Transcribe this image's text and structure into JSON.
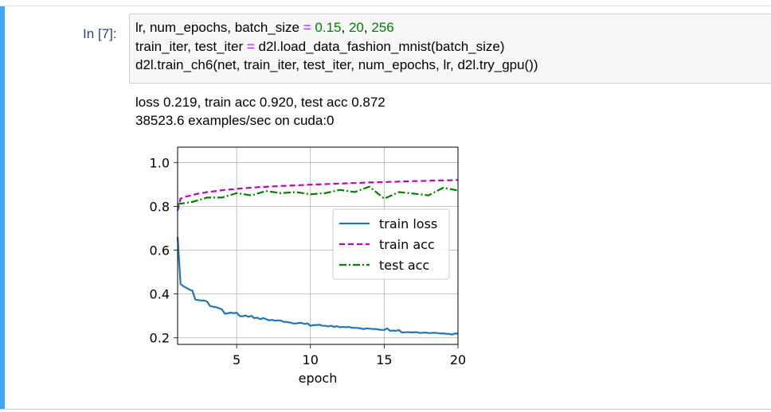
{
  "notebook": {
    "prompt": "In [7]:",
    "code": {
      "line1": {
        "a": "lr, num_epochs, batch_size ",
        "op": "=",
        "b": " ",
        "n1": "0.15",
        "c": ", ",
        "n2": "20",
        "d": ", ",
        "n3": "256"
      },
      "line2": {
        "a": "train_iter, test_iter ",
        "op": "=",
        "b": " d2l.load_data_fashion_mnist(batch_size)"
      },
      "line3": "d2l.train_ch6(net, train_iter, test_iter, num_epochs, lr, d2l.try_gpu())"
    },
    "output": {
      "line1": "loss 0.219, train acc 0.920, test acc 0.872",
      "line2": "38523.6 examples/sec on cuda:0"
    }
  },
  "colors": {
    "prompt": "#303f9f",
    "operator": "#aa22ff",
    "number": "#008000",
    "cell_selected_bar": "#42a5f5",
    "input_bg": "#f7f7f7"
  },
  "chart_data": {
    "type": "line",
    "xlabel": "epoch",
    "ylabel": "",
    "xlim": [
      1,
      20
    ],
    "ylim": [
      0.17,
      1.07
    ],
    "xticks": [
      5,
      10,
      15,
      20
    ],
    "yticks": [
      0.2,
      0.4,
      0.6,
      0.8,
      1.0
    ],
    "ytick_labels": [
      "0.2",
      "0.4",
      "0.6",
      "0.8",
      "1.0"
    ],
    "grid": true,
    "legend_position": "center-right",
    "series": [
      {
        "name": "train loss",
        "color": "#1f77b4",
        "dash": "solid",
        "x": [
          1.0,
          1.2,
          1.4,
          1.6,
          1.8,
          2.0,
          2.2,
          2.4,
          2.6,
          2.8,
          3.0,
          3.2,
          3.4,
          3.6,
          3.8,
          4.0,
          4.2,
          4.4,
          4.6,
          4.8,
          5.0,
          5.2,
          5.4,
          5.6,
          5.8,
          6.0,
          6.2,
          6.4,
          6.6,
          6.8,
          7.0,
          7.2,
          7.4,
          7.6,
          7.8,
          8.0,
          8.2,
          8.4,
          8.6,
          8.8,
          9.0,
          9.2,
          9.4,
          9.6,
          9.8,
          10.0,
          10.2,
          10.4,
          10.6,
          10.8,
          11.0,
          11.2,
          11.4,
          11.6,
          11.8,
          12.0,
          12.2,
          12.4,
          12.6,
          12.8,
          13.0,
          13.2,
          13.4,
          13.6,
          13.8,
          14.0,
          14.2,
          14.4,
          14.6,
          14.8,
          15.0,
          15.2,
          15.4,
          15.6,
          15.8,
          16.0,
          16.2,
          16.4,
          16.6,
          16.8,
          17.0,
          17.2,
          17.4,
          17.6,
          17.8,
          18.0,
          18.2,
          18.4,
          18.6,
          18.8,
          19.0,
          19.2,
          19.4,
          19.6,
          19.8,
          20.0
        ],
        "y": [
          0.66,
          0.445,
          0.435,
          0.428,
          0.42,
          0.415,
          0.375,
          0.372,
          0.37,
          0.37,
          0.365,
          0.345,
          0.342,
          0.34,
          0.335,
          0.33,
          0.31,
          0.312,
          0.315,
          0.312,
          0.315,
          0.3,
          0.298,
          0.302,
          0.296,
          0.3,
          0.29,
          0.292,
          0.285,
          0.29,
          0.285,
          0.28,
          0.282,
          0.278,
          0.28,
          0.278,
          0.273,
          0.272,
          0.27,
          0.266,
          0.265,
          0.268,
          0.268,
          0.263,
          0.266,
          0.255,
          0.258,
          0.258,
          0.26,
          0.255,
          0.255,
          0.252,
          0.255,
          0.25,
          0.253,
          0.248,
          0.25,
          0.248,
          0.25,
          0.246,
          0.245,
          0.245,
          0.243,
          0.24,
          0.243,
          0.242,
          0.24,
          0.24,
          0.238,
          0.236,
          0.236,
          0.243,
          0.232,
          0.233,
          0.232,
          0.235,
          0.224,
          0.225,
          0.226,
          0.225,
          0.225,
          0.226,
          0.222,
          0.223,
          0.224,
          0.222,
          0.222,
          0.223,
          0.222,
          0.22,
          0.22,
          0.218,
          0.218,
          0.215,
          0.22,
          0.219
        ]
      },
      {
        "name": "train acc",
        "color": "#bf00bf",
        "dash": "dashed",
        "x": [
          1.0,
          1.2,
          1.4,
          1.6,
          1.8,
          2.0,
          2.2,
          2.4,
          2.6,
          2.8,
          3.0,
          3.2,
          3.4,
          3.6,
          3.8,
          4.0,
          4.2,
          4.4,
          4.6,
          4.8,
          5.0,
          5.2,
          5.4,
          5.6,
          5.8,
          6.0,
          6.2,
          6.4,
          6.6,
          6.8,
          7.0,
          7.2,
          7.4,
          7.6,
          7.8,
          8.0,
          8.2,
          8.4,
          8.6,
          8.8,
          9.0,
          9.2,
          9.4,
          9.6,
          9.8,
          10.0,
          10.2,
          10.4,
          10.6,
          10.8,
          11.0,
          11.2,
          11.4,
          11.6,
          11.8,
          12.0,
          12.2,
          12.4,
          12.6,
          12.8,
          13.0,
          13.2,
          13.4,
          13.6,
          13.8,
          14.0,
          14.2,
          14.4,
          14.6,
          14.8,
          15.0,
          15.2,
          15.4,
          15.6,
          15.8,
          16.0,
          16.2,
          16.4,
          16.6,
          16.8,
          17.0,
          17.2,
          17.4,
          17.6,
          17.8,
          18.0,
          18.2,
          18.4,
          18.6,
          18.8,
          19.0,
          19.2,
          19.4,
          19.6,
          19.8,
          20.0
        ],
        "y": [
          0.78,
          0.835,
          0.84,
          0.845,
          0.848,
          0.85,
          0.855,
          0.858,
          0.86,
          0.862,
          0.865,
          0.867,
          0.868,
          0.87,
          0.872,
          0.873,
          0.875,
          0.876,
          0.877,
          0.878,
          0.88,
          0.881,
          0.882,
          0.883,
          0.884,
          0.885,
          0.886,
          0.887,
          0.888,
          0.888,
          0.889,
          0.89,
          0.891,
          0.891,
          0.892,
          0.893,
          0.893,
          0.894,
          0.895,
          0.895,
          0.896,
          0.896,
          0.897,
          0.897,
          0.898,
          0.899,
          0.899,
          0.9,
          0.9,
          0.901,
          0.901,
          0.902,
          0.902,
          0.903,
          0.903,
          0.904,
          0.904,
          0.905,
          0.905,
          0.906,
          0.906,
          0.907,
          0.907,
          0.908,
          0.908,
          0.909,
          0.909,
          0.91,
          0.91,
          0.91,
          0.911,
          0.911,
          0.912,
          0.912,
          0.912,
          0.913,
          0.913,
          0.914,
          0.914,
          0.914,
          0.915,
          0.915,
          0.915,
          0.916,
          0.916,
          0.917,
          0.917,
          0.917,
          0.918,
          0.918,
          0.918,
          0.919,
          0.919,
          0.919,
          0.92,
          0.92
        ]
      },
      {
        "name": "test acc",
        "color": "#008000",
        "dash": "dashdot",
        "x": [
          1,
          2,
          3,
          4,
          5,
          6,
          7,
          8,
          9,
          10,
          11,
          12,
          13,
          14,
          15,
          16,
          17,
          18,
          19,
          20
        ],
        "y": [
          0.81,
          0.82,
          0.84,
          0.84,
          0.86,
          0.85,
          0.87,
          0.86,
          0.865,
          0.855,
          0.86,
          0.875,
          0.865,
          0.89,
          0.835,
          0.865,
          0.858,
          0.85,
          0.885,
          0.872
        ]
      }
    ]
  }
}
